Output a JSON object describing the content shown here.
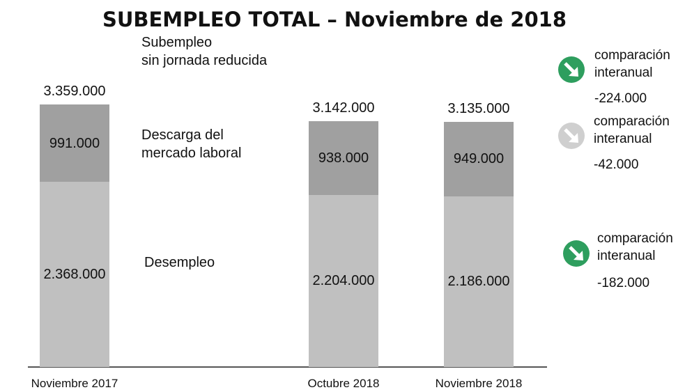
{
  "chart_data": {
    "type": "stacked_bar",
    "title": "SUBEMPLEO TOTAL – Noviembre de 2018",
    "categories": [
      "Noviembre 2017",
      "Octubre 2018",
      "Noviembre 2018"
    ],
    "series": [
      {
        "name": "Desempleo",
        "color": "#c0c0c0",
        "values": [
          2368000,
          2204000,
          2186000
        ],
        "value_labels": [
          "2.368.000",
          "2.204.000",
          "2.186.000"
        ]
      },
      {
        "name": "Descarga del\nmercado laboral",
        "color": "#a0a0a0",
        "values": [
          991000,
          938000,
          949000
        ],
        "value_labels": [
          "991.000",
          "938.000",
          "949.000"
        ]
      }
    ],
    "totals": {
      "name": "Subempleo\nsin jornada reducida",
      "values": [
        3359000,
        3142000,
        3135000
      ],
      "value_labels": [
        "3.359.000",
        "3.142.000",
        "3.135.000"
      ]
    },
    "annotations": [
      {
        "text": "comparación\ninteranual",
        "value": -224000,
        "value_label": "-224.000",
        "color": "#2e9e5e"
      },
      {
        "text": "comparación\ninteranual",
        "value": -42000,
        "value_label": "-42.000",
        "color": "#cfcfcf"
      },
      {
        "text": "comparación\ninteranual",
        "value": -182000,
        "value_label": "-182.000",
        "color": "#2e9e5e"
      }
    ]
  }
}
